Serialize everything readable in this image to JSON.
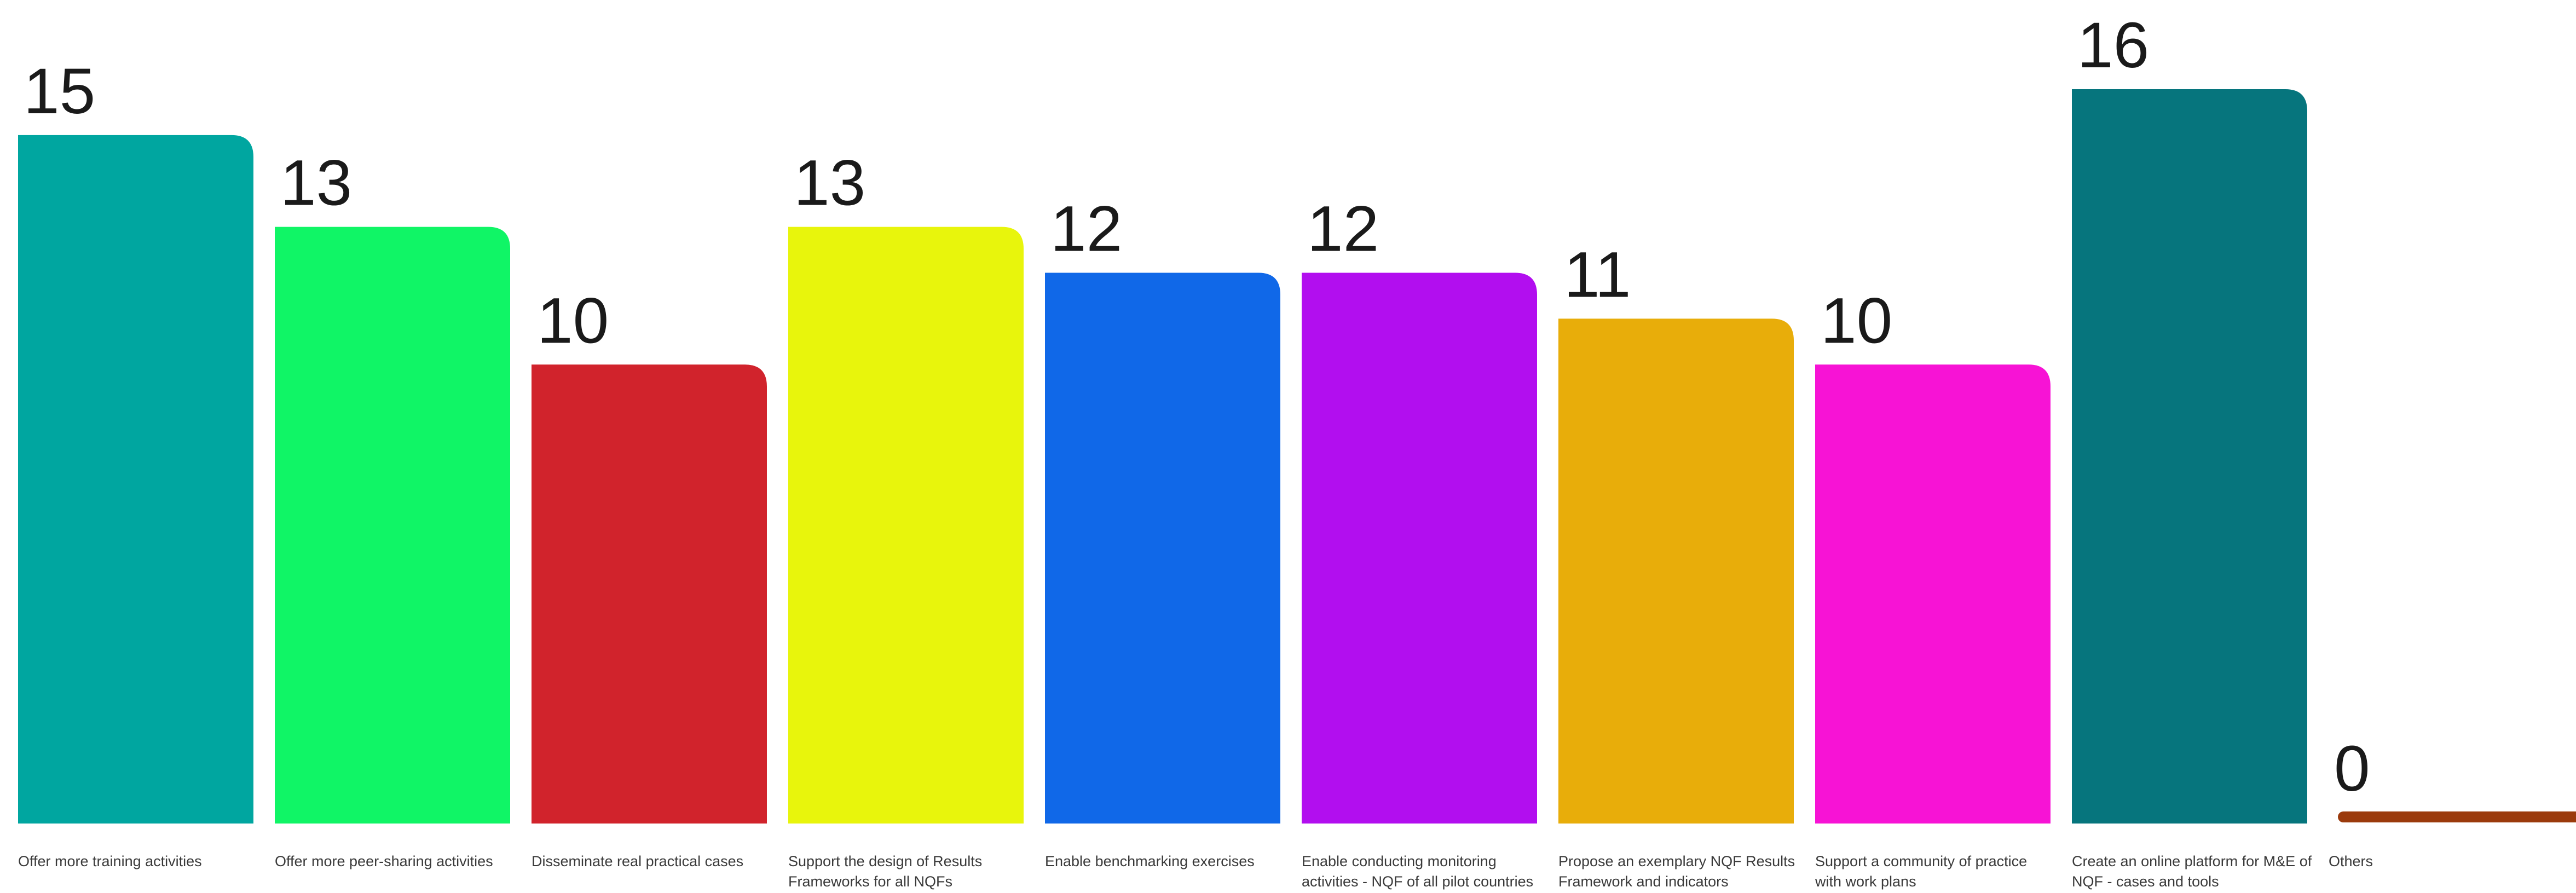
{
  "chart_data": {
    "type": "bar",
    "title": "",
    "xlabel": "",
    "ylabel": "",
    "ylim": [
      0,
      16
    ],
    "grid": false,
    "legend": "none",
    "categories": [
      [
        "Offer more training activities"
      ],
      [
        "Offer more peer-sharing activities"
      ],
      [
        "Disseminate real practical cases"
      ],
      [
        "Support the design of Results",
        "Frameworks for all NQFs"
      ],
      [
        "Enable benchmarking exercises"
      ],
      [
        "Enable conducting monitoring",
        "activities - NQF of all pilot countries"
      ],
      [
        "Propose an exemplary NQF Results",
        "Framework and indicators"
      ],
      [
        "Support a community of practice",
        "with work plans"
      ],
      [
        "Create an online platform for M&E of",
        "NQF - cases and tools"
      ],
      [
        "Others"
      ]
    ],
    "values": [
      15,
      13,
      10,
      13,
      12,
      12,
      11,
      10,
      16,
      0
    ],
    "colors": [
      "#00A6A0",
      "#10F566",
      "#D1232C",
      "#E8F50C",
      "#1068E8",
      "#B20EEF",
      "#E8AD0A",
      "#F713D5",
      "#06757D",
      "#9B3A0C"
    ]
  }
}
